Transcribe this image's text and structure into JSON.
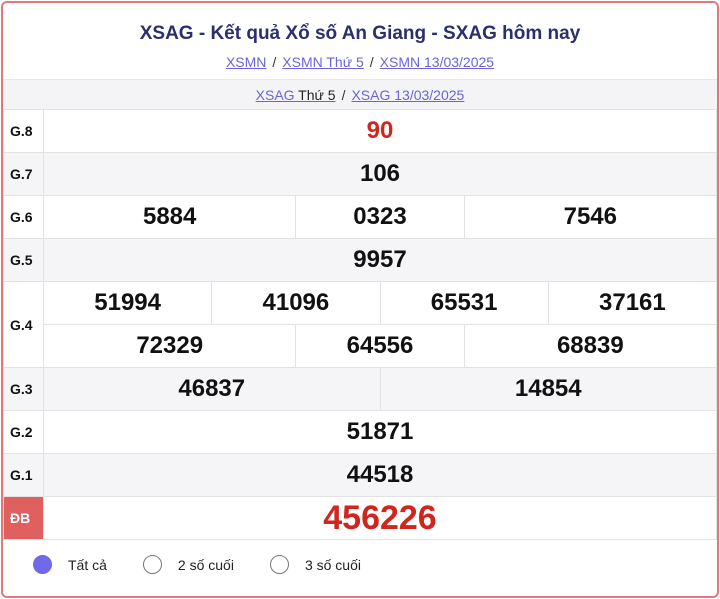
{
  "title": "XSAG - Kết quả Xổ số An Giang - SXAG hôm nay",
  "breadcrumbs": [
    "XSMN",
    "XSMN Thứ 5",
    "XSMN 13/03/2025"
  ],
  "sub": {
    "link1": "XSAG",
    "plain1": " Thứ 5",
    "link2": "XSAG 13/03/2025"
  },
  "prizes": {
    "g8": {
      "label": "G.8",
      "values": [
        "90"
      ]
    },
    "g7": {
      "label": "G.7",
      "values": [
        "106"
      ]
    },
    "g6": {
      "label": "G.6",
      "values": [
        "5884",
        "0323",
        "7546"
      ]
    },
    "g5": {
      "label": "G.5",
      "values": [
        "9957"
      ]
    },
    "g4": {
      "label": "G.4",
      "values": [
        "51994",
        "41096",
        "65531",
        "37161",
        "72329",
        "64556",
        "68839"
      ]
    },
    "g3": {
      "label": "G.3",
      "values": [
        "46837",
        "14854"
      ]
    },
    "g2": {
      "label": "G.2",
      "values": [
        "51871"
      ]
    },
    "g1": {
      "label": "G.1",
      "values": [
        "44518"
      ]
    },
    "db": {
      "label": "ĐB",
      "values": [
        "456226"
      ]
    }
  },
  "options": [
    {
      "label": "Tất cả",
      "selected": true
    },
    {
      "label": "2 số cuối",
      "selected": false
    },
    {
      "label": "3 số cuối",
      "selected": false
    }
  ],
  "colors": {
    "accent": "#7069e8",
    "prize_red": "#d0261e",
    "border": "#e07a7a"
  }
}
